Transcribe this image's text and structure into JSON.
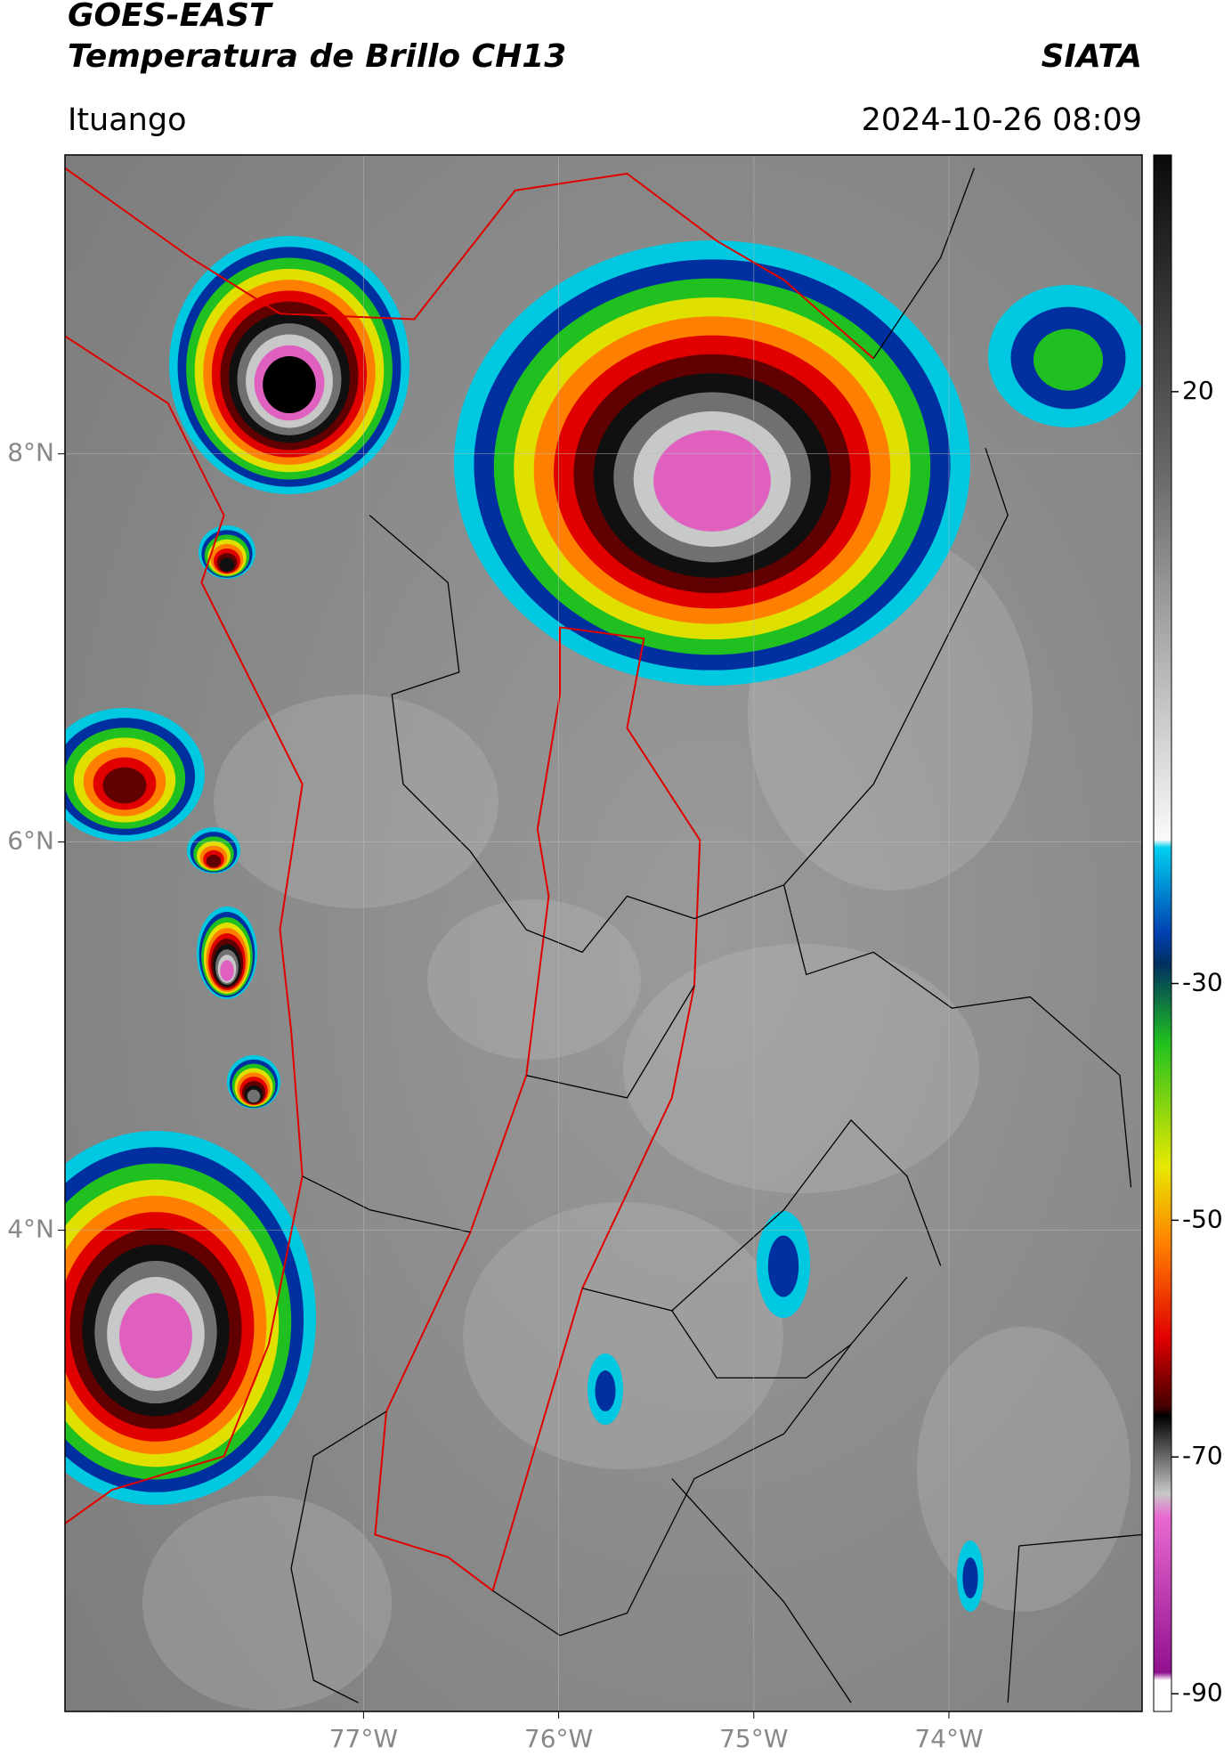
{
  "header": {
    "title": "GOES-EAST",
    "subtitle": "Temperatura de Brillo CH13",
    "brand": "SIATA",
    "location": "Ituango",
    "datetime": "2024-10-26 08:09"
  },
  "map": {
    "xlim": [
      -78.53,
      -73.01
    ],
    "ylim": [
      1.52,
      9.54
    ],
    "xticks": [
      {
        "value": -77,
        "label": "77°W"
      },
      {
        "value": -76,
        "label": "76°W"
      },
      {
        "value": -75,
        "label": "75°W"
      },
      {
        "value": -74,
        "label": "74°W"
      }
    ],
    "yticks": [
      {
        "value": 8,
        "label": "8°N"
      },
      {
        "value": 6,
        "label": "6°N"
      },
      {
        "value": 4,
        "label": "4°N"
      }
    ]
  },
  "colorbar": {
    "lim": [
      -91.5,
      40
    ],
    "ticks": [
      20,
      -30,
      -50,
      -70,
      -90
    ]
  }
}
